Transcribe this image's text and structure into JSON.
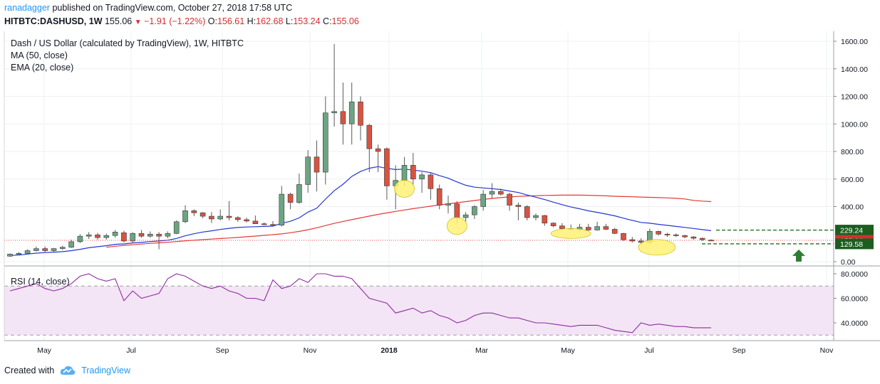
{
  "header": {
    "author": "ranadagger",
    "published_text": "published on TradingView.com, October 27, 2018 17:58 UTC",
    "symbol": "HITBTC:DASHUSD, 1W",
    "last": "155.06",
    "change": "−1.91 (−1.22%)",
    "o_label": "O:",
    "o_value": "156.61",
    "h_label": "H:",
    "h_value": "162.68",
    "l_label": "L:",
    "l_value": "153.24",
    "c_label": "C:",
    "c_value": "155.06"
  },
  "legend": {
    "title": "Dash / US Dollar (calculated by TradingView), 1W, HITBTC",
    "ma": "MA (50, close)",
    "ema": "EMA (20, close)"
  },
  "colors": {
    "up": "#6ba583",
    "down": "#d75442",
    "ema": "#2236d1",
    "ma": "#e53935",
    "rsi": "#8e2ca0",
    "rsi_band": "#f3e5f5",
    "highlight": "#fff176",
    "support": "#2e7d32",
    "price_tag": "#d32f2f",
    "level_tag": "#1b5e20"
  },
  "chart_data": [
    {
      "type": "candlestick",
      "title": "Dash / US Dollar (calculated by TradingView), 1W, HITBTC",
      "ylim": [
        -20,
        1650
      ],
      "y_ticks": [
        "1600.00",
        "1400.00",
        "1200.00",
        "1000.00",
        "800.00",
        "600.00",
        "400.00",
        "0.00"
      ],
      "x_ticks": [
        "May",
        "Jul",
        "Sep",
        "Nov",
        "2018",
        "Mar",
        "May",
        "Jul",
        "Sep",
        "Nov"
      ],
      "candles": [
        {
          "o": 40,
          "h": 60,
          "l": 35,
          "c": 55
        },
        {
          "o": 55,
          "h": 70,
          "l": 50,
          "c": 60
        },
        {
          "o": 60,
          "h": 90,
          "l": 55,
          "c": 80
        },
        {
          "o": 80,
          "h": 110,
          "l": 75,
          "c": 95
        },
        {
          "o": 95,
          "h": 110,
          "l": 70,
          "c": 80
        },
        {
          "o": 80,
          "h": 100,
          "l": 70,
          "c": 95
        },
        {
          "o": 95,
          "h": 115,
          "l": 85,
          "c": 105
        },
        {
          "o": 105,
          "h": 160,
          "l": 100,
          "c": 145
        },
        {
          "o": 145,
          "h": 200,
          "l": 135,
          "c": 185
        },
        {
          "o": 185,
          "h": 215,
          "l": 165,
          "c": 195
        },
        {
          "o": 195,
          "h": 210,
          "l": 160,
          "c": 175
        },
        {
          "o": 175,
          "h": 205,
          "l": 160,
          "c": 190
        },
        {
          "o": 190,
          "h": 230,
          "l": 175,
          "c": 215
        },
        {
          "o": 210,
          "h": 225,
          "l": 140,
          "c": 150
        },
        {
          "o": 150,
          "h": 215,
          "l": 140,
          "c": 205
        },
        {
          "o": 205,
          "h": 230,
          "l": 175,
          "c": 185
        },
        {
          "o": 185,
          "h": 220,
          "l": 175,
          "c": 200
        },
        {
          "o": 200,
          "h": 215,
          "l": 90,
          "c": 185
        },
        {
          "o": 185,
          "h": 220,
          "l": 170,
          "c": 205
        },
        {
          "o": 205,
          "h": 300,
          "l": 200,
          "c": 290
        },
        {
          "o": 290,
          "h": 410,
          "l": 280,
          "c": 370
        },
        {
          "o": 370,
          "h": 380,
          "l": 330,
          "c": 355
        },
        {
          "o": 355,
          "h": 360,
          "l": 315,
          "c": 330
        },
        {
          "o": 330,
          "h": 360,
          "l": 280,
          "c": 310
        },
        {
          "o": 310,
          "h": 380,
          "l": 300,
          "c": 330
        },
        {
          "o": 330,
          "h": 440,
          "l": 300,
          "c": 320
        },
        {
          "o": 320,
          "h": 330,
          "l": 290,
          "c": 305
        },
        {
          "o": 305,
          "h": 320,
          "l": 285,
          "c": 295
        },
        {
          "o": 295,
          "h": 335,
          "l": 280,
          "c": 275
        },
        {
          "o": 275,
          "h": 285,
          "l": 265,
          "c": 270
        },
        {
          "o": 270,
          "h": 295,
          "l": 260,
          "c": 265
        },
        {
          "o": 265,
          "h": 550,
          "l": 255,
          "c": 490
        },
        {
          "o": 490,
          "h": 500,
          "l": 380,
          "c": 430
        },
        {
          "o": 430,
          "h": 640,
          "l": 420,
          "c": 560
        },
        {
          "o": 560,
          "h": 810,
          "l": 500,
          "c": 760
        },
        {
          "o": 760,
          "h": 880,
          "l": 510,
          "c": 650
        },
        {
          "o": 650,
          "h": 1200,
          "l": 560,
          "c": 1080
        },
        {
          "o": 1080,
          "h": 1580,
          "l": 980,
          "c": 1090
        },
        {
          "o": 1090,
          "h": 1300,
          "l": 850,
          "c": 1000
        },
        {
          "o": 1000,
          "h": 1300,
          "l": 850,
          "c": 1160
        },
        {
          "o": 1160,
          "h": 1200,
          "l": 880,
          "c": 990
        },
        {
          "o": 990,
          "h": 1000,
          "l": 650,
          "c": 820
        },
        {
          "o": 820,
          "h": 850,
          "l": 650,
          "c": 800
        },
        {
          "o": 820,
          "h": 830,
          "l": 450,
          "c": 550
        },
        {
          "o": 550,
          "h": 700,
          "l": 380,
          "c": 590
        },
        {
          "o": 590,
          "h": 760,
          "l": 550,
          "c": 700
        },
        {
          "o": 700,
          "h": 790,
          "l": 560,
          "c": 600
        },
        {
          "o": 600,
          "h": 650,
          "l": 500,
          "c": 630
        },
        {
          "o": 630,
          "h": 650,
          "l": 450,
          "c": 530
        },
        {
          "o": 530,
          "h": 560,
          "l": 380,
          "c": 410
        },
        {
          "o": 410,
          "h": 480,
          "l": 350,
          "c": 420
        },
        {
          "o": 420,
          "h": 440,
          "l": 280,
          "c": 320
        },
        {
          "o": 320,
          "h": 360,
          "l": 290,
          "c": 340
        },
        {
          "o": 340,
          "h": 410,
          "l": 310,
          "c": 400
        },
        {
          "o": 400,
          "h": 520,
          "l": 370,
          "c": 490
        },
        {
          "o": 490,
          "h": 570,
          "l": 460,
          "c": 510
        },
        {
          "o": 510,
          "h": 530,
          "l": 480,
          "c": 490
        },
        {
          "o": 490,
          "h": 500,
          "l": 370,
          "c": 410
        },
        {
          "o": 410,
          "h": 430,
          "l": 300,
          "c": 400
        },
        {
          "o": 400,
          "h": 410,
          "l": 300,
          "c": 320
        },
        {
          "o": 320,
          "h": 350,
          "l": 300,
          "c": 335
        },
        {
          "o": 335,
          "h": 340,
          "l": 260,
          "c": 280
        },
        {
          "o": 280,
          "h": 285,
          "l": 250,
          "c": 260
        },
        {
          "o": 260,
          "h": 280,
          "l": 225,
          "c": 240
        },
        {
          "o": 240,
          "h": 270,
          "l": 225,
          "c": 235
        },
        {
          "o": 235,
          "h": 275,
          "l": 220,
          "c": 250
        },
        {
          "o": 250,
          "h": 275,
          "l": 225,
          "c": 230
        },
        {
          "o": 230,
          "h": 290,
          "l": 225,
          "c": 255
        },
        {
          "o": 255,
          "h": 275,
          "l": 230,
          "c": 235
        },
        {
          "o": 235,
          "h": 245,
          "l": 200,
          "c": 205
        },
        {
          "o": 205,
          "h": 210,
          "l": 150,
          "c": 160
        },
        {
          "o": 160,
          "h": 180,
          "l": 140,
          "c": 150
        },
        {
          "o": 150,
          "h": 170,
          "l": 125,
          "c": 140
        },
        {
          "o": 140,
          "h": 240,
          "l": 125,
          "c": 220
        },
        {
          "o": 220,
          "h": 225,
          "l": 190,
          "c": 200
        },
        {
          "o": 200,
          "h": 210,
          "l": 180,
          "c": 195
        },
        {
          "o": 195,
          "h": 205,
          "l": 180,
          "c": 190
        },
        {
          "o": 190,
          "h": 195,
          "l": 170,
          "c": 180
        },
        {
          "o": 180,
          "h": 185,
          "l": 160,
          "c": 170
        },
        {
          "o": 170,
          "h": 175,
          "l": 150,
          "c": 160
        },
        {
          "o": 156.61,
          "h": 162.68,
          "l": 153.24,
          "c": 155.06
        }
      ],
      "ema20": [
        45,
        48,
        55,
        62,
        66,
        69,
        73,
        80,
        90,
        101,
        109,
        116,
        126,
        129,
        136,
        140,
        146,
        150,
        156,
        169,
        188,
        203,
        215,
        224,
        234,
        242,
        248,
        252,
        254,
        256,
        258,
        279,
        293,
        318,
        360,
        388,
        454,
        515,
        562,
        619,
        655,
        678,
        690,
        677,
        669,
        672,
        665,
        657,
        646,
        625,
        606,
        579,
        555,
        541,
        535,
        530,
        524,
        513,
        502,
        484,
        468,
        451,
        432,
        414,
        397,
        384,
        369,
        358,
        346,
        333,
        316,
        300,
        285,
        279,
        271,
        264,
        256,
        249,
        241,
        233,
        225
      ],
      "ma50_start_index": 11,
      "ma50": [
        105,
        112,
        118,
        123,
        128,
        133,
        137,
        141,
        146,
        151,
        156,
        160,
        164,
        168,
        172,
        176,
        181,
        186,
        191,
        196,
        202,
        210,
        220,
        232,
        246,
        262,
        278,
        292,
        305,
        318,
        331,
        343,
        354,
        365,
        375,
        385,
        394,
        403,
        412,
        420,
        428,
        436,
        444,
        452,
        459,
        465,
        470,
        474,
        477,
        479,
        481,
        482,
        483,
        483,
        483,
        482,
        480,
        478,
        475,
        473,
        471,
        469,
        467,
        465,
        463,
        460,
        455,
        445,
        440,
        436
      ],
      "support_levels": [
        229.24,
        129.58
      ],
      "last_price": 155.06,
      "price_labels": [
        "229.24",
        "155.06",
        "129.58"
      ],
      "highlighted_candles": [
        45,
        51,
        64,
        73
      ],
      "annotation": "up arrow below support at 129.58"
    },
    {
      "type": "line",
      "title": "RSI (14, close)",
      "ylim": [
        27,
        84
      ],
      "y_ticks": [
        "80.0000",
        "60.0000",
        "40.0000"
      ],
      "band": [
        30,
        70
      ],
      "values": [
        66,
        68,
        70,
        72,
        68,
        66,
        68,
        72,
        78,
        80,
        76,
        74,
        76,
        58,
        66,
        60,
        62,
        64,
        76,
        80,
        78,
        74,
        70,
        68,
        70,
        66,
        64,
        60,
        60,
        58,
        75,
        68,
        70,
        76,
        73,
        80,
        80,
        78,
        78,
        76,
        68,
        60,
        58,
        56,
        48,
        50,
        52,
        48,
        50,
        46,
        44,
        40,
        42,
        46,
        48,
        48,
        46,
        44,
        44,
        42,
        40,
        40,
        39,
        38,
        37,
        38,
        38,
        38,
        36,
        34,
        33,
        32,
        40,
        38,
        39,
        38,
        37,
        37,
        36,
        36,
        36
      ]
    }
  ],
  "footer": {
    "created_with": "Created with",
    "brand": "TradingView"
  }
}
